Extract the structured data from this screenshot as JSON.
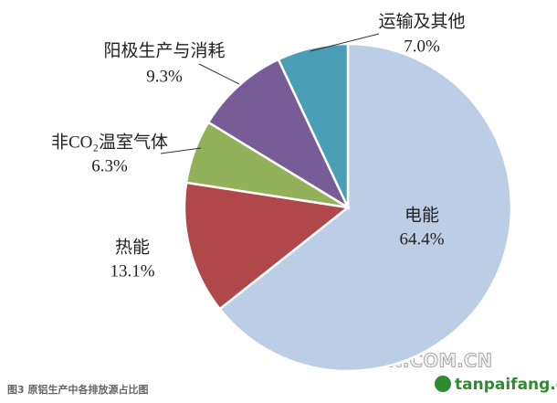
{
  "chart_data": {
    "type": "pie",
    "categories": [
      "电能",
      "热能",
      "非CO₂温室气体",
      "阳极生产与消耗",
      "运输及其他"
    ],
    "values": [
      64.4,
      13.1,
      6.3,
      9.3,
      7.0
    ],
    "value_labels": [
      "64.4%",
      "13.1%",
      "6.3%",
      "9.3%",
      "7.0%"
    ],
    "colors": [
      "#bccde6",
      "#b0474a",
      "#93b15b",
      "#785c97",
      "#4a9fb6"
    ],
    "caption": "图3 原铝生产中各排放源占比图",
    "watermarks": [
      "CNMN.COM.CN",
      "tanpaifang.com"
    ]
  }
}
